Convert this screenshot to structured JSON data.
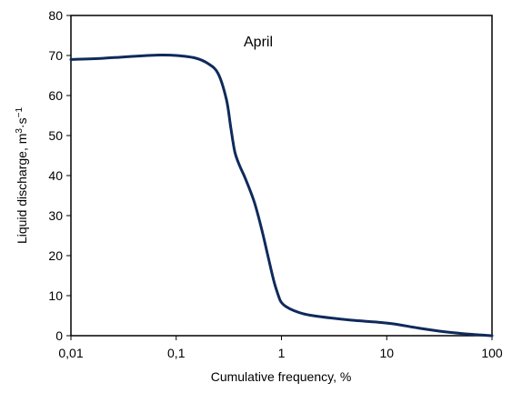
{
  "chart_data": {
    "type": "line",
    "annotation": "April",
    "xlabel": "Cumulative frequency, %",
    "ylabel": {
      "text": "Liquid discharge, m",
      "sup1": "3",
      "mid": "·s",
      "sup2": "−1"
    },
    "x_scale": "log",
    "xlim": [
      0.01,
      100
    ],
    "ylim": [
      0,
      80
    ],
    "x_ticks": [
      0.01,
      0.1,
      1,
      10,
      100
    ],
    "x_tick_labels": [
      "0,01",
      "0,1",
      "1",
      "10",
      "100"
    ],
    "y_ticks": [
      0,
      10,
      20,
      30,
      40,
      50,
      60,
      70,
      80
    ],
    "y_tick_labels": [
      "0",
      "10",
      "20",
      "30",
      "40",
      "50",
      "60",
      "70",
      "80"
    ],
    "grid": false,
    "legend": "none",
    "series": [
      {
        "color": "#0f2a5c",
        "x": [
          0.01,
          0.02,
          0.04,
          0.07,
          0.1,
          0.15,
          0.2,
          0.25,
          0.3,
          0.33,
          0.36,
          0.4,
          0.45,
          0.55,
          0.65,
          0.75,
          0.85,
          0.95,
          1.0,
          1.1,
          1.3,
          1.6,
          2,
          3,
          5,
          8,
          12,
          20,
          35,
          60,
          100
        ],
        "y": [
          69.0,
          69.3,
          69.8,
          70.1,
          70.0,
          69.4,
          68.0,
          65.5,
          59.0,
          52.0,
          46.0,
          42.5,
          39.5,
          33.5,
          26.5,
          19.5,
          13.5,
          9.5,
          8.3,
          7.3,
          6.3,
          5.5,
          5.0,
          4.4,
          3.8,
          3.4,
          2.9,
          1.9,
          1.0,
          0.4,
          0.0
        ]
      }
    ]
  }
}
